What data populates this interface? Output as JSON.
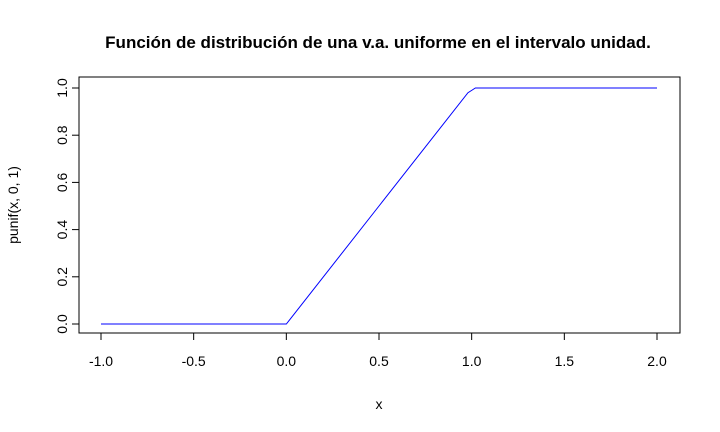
{
  "chart_data": {
    "type": "line",
    "title": "Función de distribución de una v.a. uniforme en el intervalo unidad.",
    "xlabel": "x",
    "ylabel": "punif(x, 0, 1)",
    "xlim": [
      -1.0,
      2.0
    ],
    "ylim": [
      0.0,
      1.0
    ],
    "x_ticks": [
      "-1.0",
      "-0.5",
      "0.0",
      "0.5",
      "1.0",
      "1.5",
      "2.0"
    ],
    "y_ticks": [
      "0.0",
      "0.2",
      "0.4",
      "0.6",
      "0.8",
      "1.0"
    ],
    "grid": false,
    "line_color": "#0000ff",
    "series": [
      {
        "x": [
          -1.0,
          -0.5,
          -0.02,
          0.0,
          0.02,
          0.5,
          0.98,
          1.0,
          1.02,
          1.5,
          2.0
        ],
        "y": [
          0.0,
          0.0,
          0.0,
          0.0,
          0.02,
          0.5,
          0.98,
          0.99,
          1.0,
          1.0,
          1.0
        ]
      }
    ]
  }
}
